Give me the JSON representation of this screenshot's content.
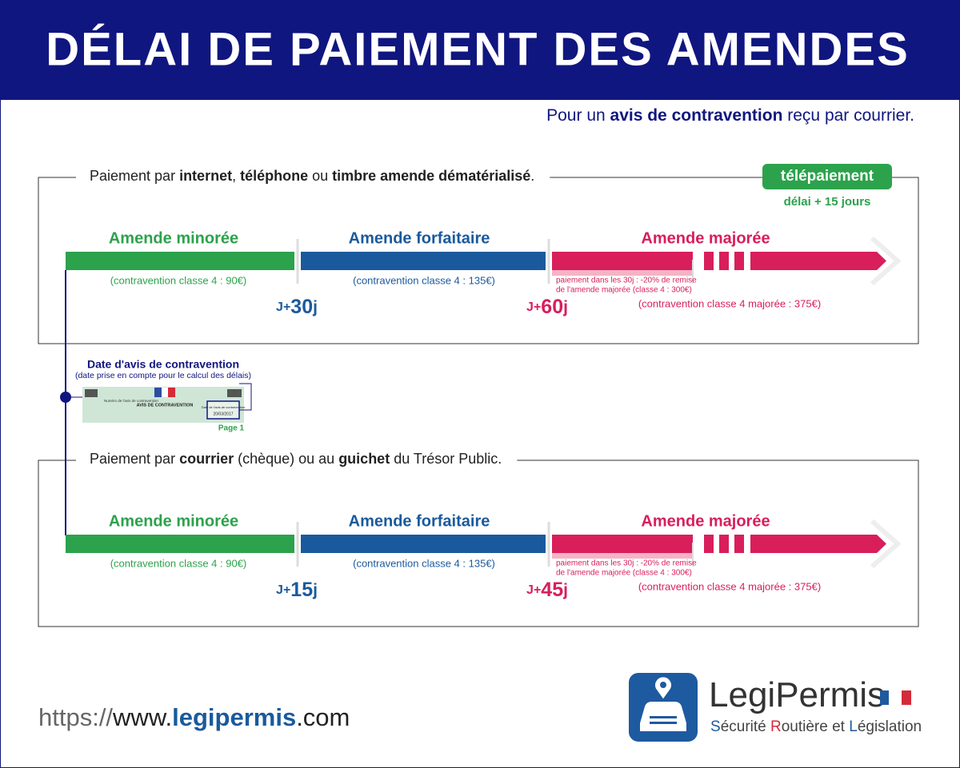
{
  "header": {
    "title": "DÉLAI DE PAIEMENT DES AMENDES",
    "subtitle": [
      "Pour un ",
      "avis de contravention",
      " reçu par courrier."
    ]
  },
  "panels": [
    {
      "heading": [
        "Paiement par ",
        "internet",
        ", ",
        "téléphone",
        " ou ",
        "timbre amende dématérialisé",
        "."
      ],
      "badge": "télépaiement",
      "badge_note": "délai + 15 jours",
      "phases": [
        {
          "label": "Amende minorée",
          "note": "(contravention classe 4 : 90€)"
        },
        {
          "label": "Amende forfaitaire",
          "note": "(contravention classe 4 : 135€)"
        },
        {
          "label": "Amende majorée",
          "note": "(contravention classe 4 majorée : 375€)"
        }
      ],
      "remise": [
        "paiement dans les 30j : -20% de remise",
        "de l'amende majorée (classe 4 : 300€)"
      ],
      "markers": [
        {
          "prefix": "J+",
          "days": 30,
          "suffix": "j"
        },
        {
          "prefix": "J+",
          "days": 60,
          "suffix": "j"
        }
      ]
    },
    {
      "heading": [
        "Paiement par ",
        "courrier",
        " (chèque) ou au ",
        "guichet",
        " du Trésor Public."
      ],
      "phases": [
        {
          "label": "Amende minorée",
          "note": "(contravention classe 4 : 90€)"
        },
        {
          "label": "Amende forfaitaire",
          "note": "(contravention classe 4 : 135€)"
        },
        {
          "label": "Amende majorée",
          "note": "(contravention classe 4 majorée : 375€)"
        }
      ],
      "remise": [
        "paiement dans les 30j : -20% de remise",
        "de l'amende majorée (classe 4 : 300€)"
      ],
      "markers": [
        {
          "prefix": "J+",
          "days": 15,
          "suffix": "j"
        },
        {
          "prefix": "J+",
          "days": 45,
          "suffix": "j"
        }
      ]
    }
  ],
  "avis": {
    "title": "Date d'avis de contravention",
    "subtitle": "(date prise en compte pour le calcul des délais)",
    "card_title": "AVIS DE CONTRAVENTION",
    "card_number": "Numéro de l'avis de contravention",
    "card_date_label": "Date de l'avis de contravention",
    "card_date": "20/03/2017",
    "page": "Page 1"
  },
  "footer": {
    "url": [
      "https://",
      "www.",
      "legipermis",
      ".com"
    ],
    "brand": [
      "Legi",
      "Permis"
    ],
    "tagline": [
      "S",
      "écurité ",
      "R",
      "outière et ",
      "L",
      "égislation"
    ]
  }
}
